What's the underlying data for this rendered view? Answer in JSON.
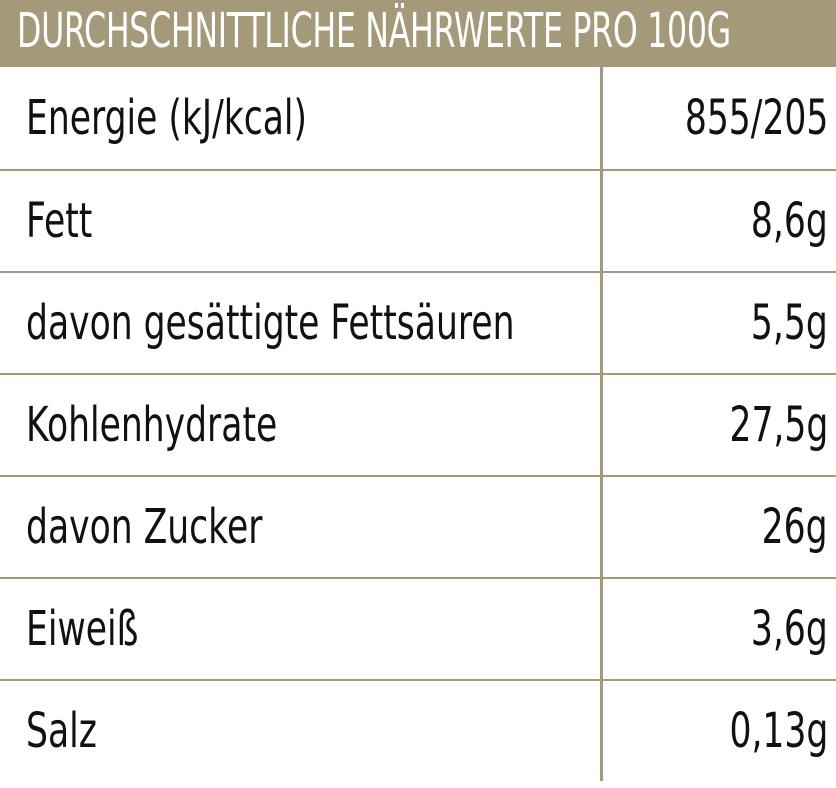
{
  "header": {
    "title": "DURCHSCHNITTLICHE NÄHRWERTE PRO 100G"
  },
  "table": {
    "rows": [
      {
        "label": "Energie (kJ/kcal)",
        "value": "855/205"
      },
      {
        "label": "Fett",
        "value": "8,6g"
      },
      {
        "label": "davon gesättigte Fettsäuren",
        "value": "5,5g"
      },
      {
        "label": "Kohlenhydrate",
        "value": "27,5g"
      },
      {
        "label": "davon Zucker",
        "value": "26g"
      },
      {
        "label": "Eiweiß",
        "value": "3,6g"
      },
      {
        "label": "Salz",
        "value": "0,13g"
      }
    ]
  },
  "colors": {
    "header_background": "#a49a79",
    "header_text": "#ffffff",
    "table_text": "#111111",
    "rule_color": "#a49a79",
    "background": "#ffffff"
  }
}
